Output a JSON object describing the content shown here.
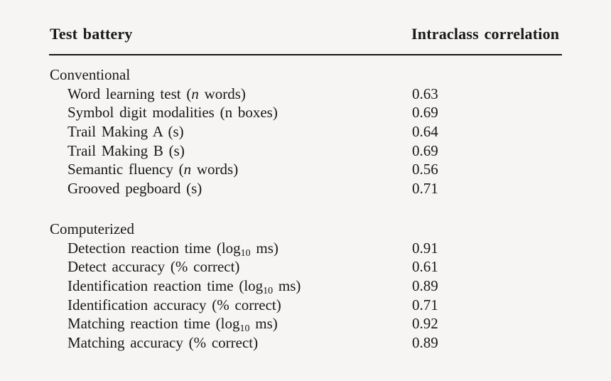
{
  "page": {
    "background_color": "#f6f5f4",
    "text_color": "#181818",
    "rule_color": "#161616"
  },
  "table": {
    "columns": [
      {
        "label": "Test battery"
      },
      {
        "label": "Intraclass correlation"
      }
    ],
    "sections": [
      {
        "label": "Conventional",
        "rows": [
          {
            "segments": [
              {
                "t": "Word learning test ("
              },
              {
                "t": "n",
                "style": "italic"
              },
              {
                "t": " words)"
              }
            ],
            "value": "0.63"
          },
          {
            "segments": [
              {
                "t": "Symbol digit modalities (n boxes)"
              }
            ],
            "value": "0.69"
          },
          {
            "segments": [
              {
                "t": "Trail Making A (s)"
              }
            ],
            "value": "0.64"
          },
          {
            "segments": [
              {
                "t": "Trail Making B (s)"
              }
            ],
            "value": "0.69"
          },
          {
            "segments": [
              {
                "t": "Semantic fluency ("
              },
              {
                "t": "n",
                "style": "italic"
              },
              {
                "t": " words)"
              }
            ],
            "value": "0.56"
          },
          {
            "segments": [
              {
                "t": "Grooved pegboard (s)"
              }
            ],
            "value": "0.71"
          }
        ]
      },
      {
        "label": "Computerized",
        "rows": [
          {
            "segments": [
              {
                "t": "Detection reaction time (log"
              },
              {
                "t": "10",
                "style": "sub"
              },
              {
                "t": " ms)"
              }
            ],
            "value": "0.91"
          },
          {
            "segments": [
              {
                "t": "Detect accuracy (% correct)"
              }
            ],
            "value": "0.61"
          },
          {
            "segments": [
              {
                "t": "Identification reaction time (log"
              },
              {
                "t": "10",
                "style": "sub"
              },
              {
                "t": " ms)"
              }
            ],
            "value": "0.89"
          },
          {
            "segments": [
              {
                "t": "Identification accuracy (% correct)"
              }
            ],
            "value": "0.71"
          },
          {
            "segments": [
              {
                "t": "Matching reaction time (log"
              },
              {
                "t": "10",
                "style": "sub"
              },
              {
                "t": " ms)"
              }
            ],
            "value": "0.92"
          },
          {
            "segments": [
              {
                "t": "Matching accuracy (% correct)"
              }
            ],
            "value": "0.89"
          }
        ]
      }
    ]
  },
  "chart_data": {
    "type": "table",
    "title": "",
    "columns": [
      "Test battery",
      "Intraclass correlation"
    ],
    "groups": [
      {
        "group": "Conventional",
        "items": [
          [
            "Word learning test (n words)",
            0.63
          ],
          [
            "Symbol digit modalities (n boxes)",
            0.69
          ],
          [
            "Trail Making A (s)",
            0.64
          ],
          [
            "Trail Making B (s)",
            0.69
          ],
          [
            "Semantic fluency (n words)",
            0.56
          ],
          [
            "Grooved pegboard (s)",
            0.71
          ]
        ]
      },
      {
        "group": "Computerized",
        "items": [
          [
            "Detection reaction time (log10 ms)",
            0.91
          ],
          [
            "Detect accuracy (% correct)",
            0.61
          ],
          [
            "Identification reaction time (log10 ms)",
            0.89
          ],
          [
            "Identification accuracy (% correct)",
            0.71
          ],
          [
            "Matching reaction time (log10 ms)",
            0.92
          ],
          [
            "Matching accuracy (% correct)",
            0.89
          ]
        ]
      }
    ]
  }
}
